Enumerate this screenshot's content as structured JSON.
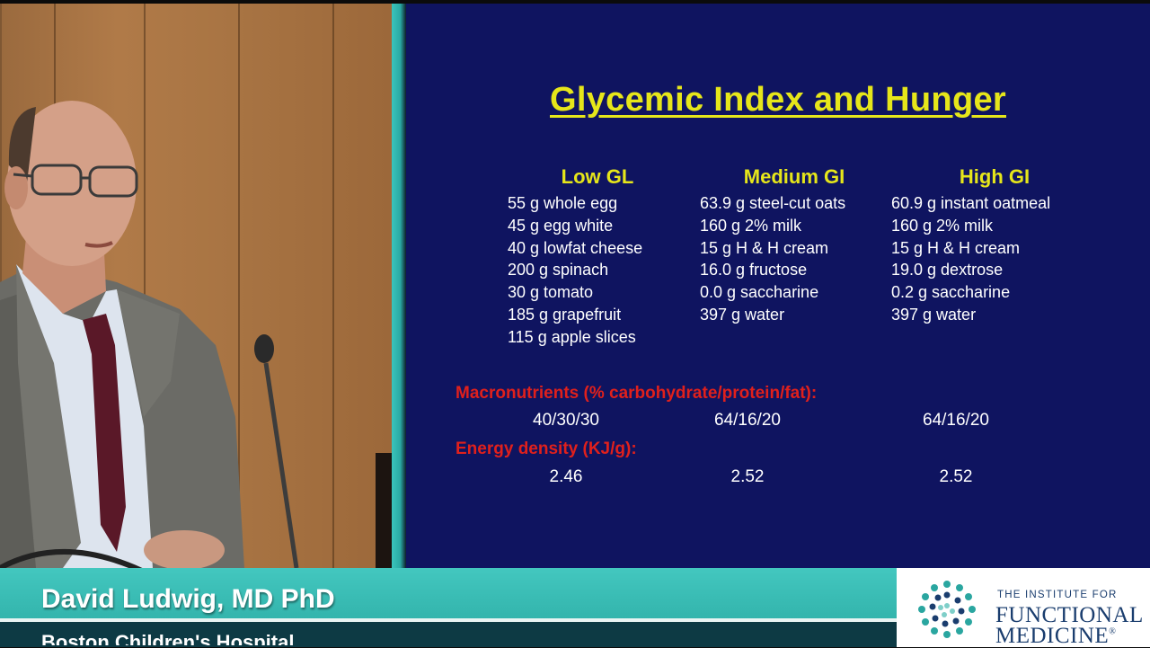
{
  "slide": {
    "title": "Glycemic Index and Hunger",
    "columns": [
      {
        "heading": "Low GL",
        "items": [
          "55 g  whole egg",
          "45 g egg white",
          "40 g lowfat cheese",
          "200 g spinach",
          "30 g tomato",
          "185 g grapefruit",
          "115 g apple slices"
        ]
      },
      {
        "heading": "Medium GI",
        "items": [
          "63.9 g steel-cut oats",
          "160 g 2% milk",
          "15 g H & H cream",
          "16.0 g fructose",
          "0.0 g saccharine",
          "397 g water"
        ]
      },
      {
        "heading": "High GI",
        "items": [
          "60.9 g instant oatmeal",
          "160 g 2% milk",
          "15 g H & H cream",
          "19.0 g dextrose",
          "0.2 g saccharine",
          "397 g water"
        ]
      }
    ],
    "macronutrients_label": "Macronutrients (% carbohydrate/protein/fat):",
    "macronutrients": [
      "40/30/30",
      "64/16/20",
      "64/16/20"
    ],
    "energy_label": "Energy density (KJ/g):",
    "energy": [
      "2.46",
      "2.52",
      "2.52"
    ]
  },
  "lower_third": {
    "name": "David Ludwig, MD PhD",
    "organization": "Boston Children's Hospital"
  },
  "logo": {
    "line_small": "THE INSTITUTE FOR",
    "line1": "FUNCTIONAL",
    "line2": "MEDICINE",
    "mark": "®"
  },
  "colors": {
    "slide_bg": "#0f1460",
    "title_yellow": "#e6e61a",
    "label_red": "#e0201c",
    "teal": "#2aaaa2",
    "logo_blue": "#1a3d6e"
  }
}
